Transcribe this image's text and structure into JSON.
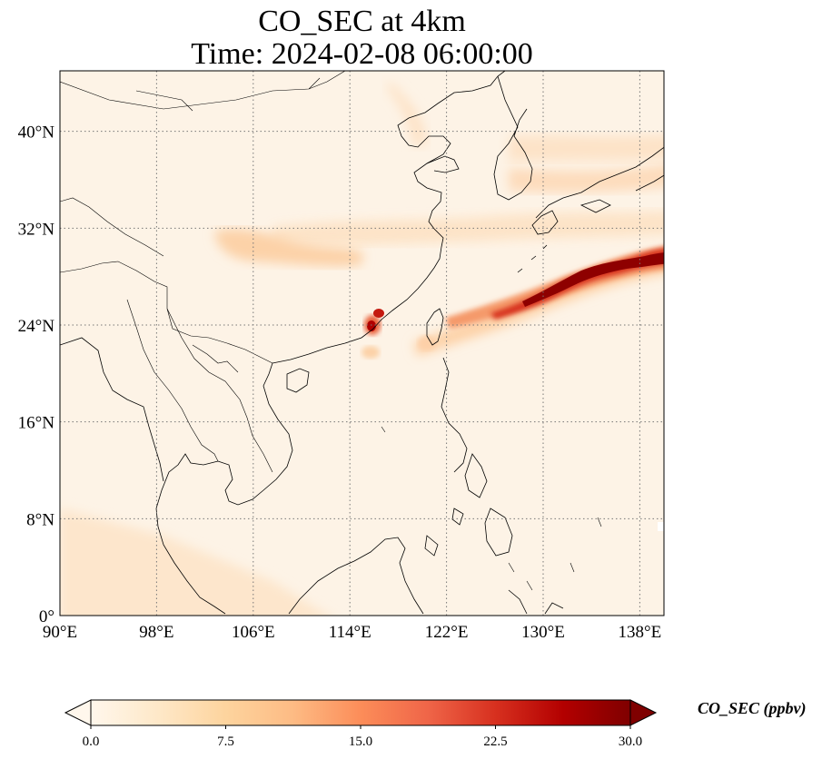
{
  "title_line1": "CO_SEC at 4km",
  "title_line2": "Time: 2024-02-08 06:00:00",
  "map": {
    "lon_range": [
      90,
      140
    ],
    "lat_range": [
      0,
      45
    ],
    "lon_ticks": [
      {
        "value": 90,
        "label": "90°E"
      },
      {
        "value": 98,
        "label": "98°E"
      },
      {
        "value": 106,
        "label": "106°E"
      },
      {
        "value": 114,
        "label": "114°E"
      },
      {
        "value": 122,
        "label": "122°E"
      },
      {
        "value": 130,
        "label": "130°E"
      },
      {
        "value": 138,
        "label": "138°E"
      }
    ],
    "lat_ticks": [
      {
        "value": 0,
        "label": "0°"
      },
      {
        "value": 8,
        "label": "8°N"
      },
      {
        "value": 16,
        "label": "16°N"
      },
      {
        "value": 24,
        "label": "24°N"
      },
      {
        "value": 32,
        "label": "32°N"
      },
      {
        "value": 40,
        "label": "40°N"
      }
    ],
    "gridlines": "dotted",
    "background_color": "#fdf3e6"
  },
  "colorbar": {
    "label": "CO_SEC (ppbv)",
    "range": [
      0,
      30
    ],
    "ticks": [
      {
        "value": 0,
        "label": "0.0"
      },
      {
        "value": 7.5,
        "label": "7.5"
      },
      {
        "value": 15,
        "label": "15.0"
      },
      {
        "value": 22.5,
        "label": "22.5"
      },
      {
        "value": 30,
        "label": "30.0"
      }
    ],
    "extend": "both",
    "colormap": [
      "#fff7ec",
      "#fee8c8",
      "#fdd49e",
      "#fdbb84",
      "#fc8d59",
      "#ef6548",
      "#d7301f",
      "#b30000",
      "#7f0000"
    ]
  }
}
